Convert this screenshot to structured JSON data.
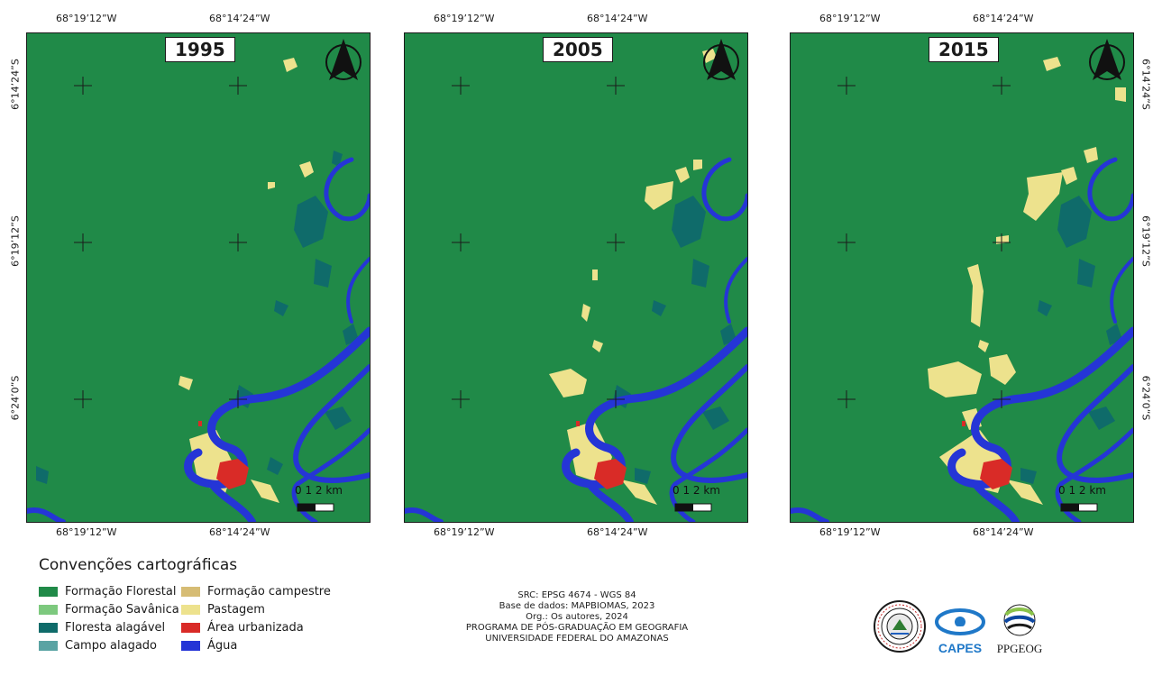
{
  "maps": [
    {
      "year": "1995",
      "lon_labels_top": [
        "68°19’12”W",
        "68°14’24”W"
      ],
      "lon_labels_bottom": [
        "68°19’12”W",
        "68°14’24”W"
      ],
      "lat_labels_left": [
        "6°14’24”S",
        "6°19’12”S",
        "6°24’0”S"
      ],
      "lat_labels_right": [],
      "scale_label": "0   1   2 km"
    },
    {
      "year": "2005",
      "lon_labels_top": [
        "68°19’12”W",
        "68°14’24”W"
      ],
      "lon_labels_bottom": [
        "68°19’12”W",
        "68°14’24”W"
      ],
      "lat_labels_left": [],
      "lat_labels_right": [],
      "scale_label": "0   1   2 km"
    },
    {
      "year": "2015",
      "lon_labels_top": [
        "68°19’12”W",
        "68°14’24”W"
      ],
      "lon_labels_bottom": [
        "68°19’12”W",
        "68°14’24”W"
      ],
      "lat_labels_left": [],
      "lat_labels_right": [
        "6°14’24”S",
        "6°19’12”S",
        "6°24’0”S"
      ],
      "scale_label": "0   1   2 km"
    }
  ],
  "legend": {
    "title": "Convenções cartográficas",
    "items": [
      {
        "label": "Formação Florestal",
        "color": "#208a48"
      },
      {
        "label": "Formação Savânica",
        "color": "#7dc97e"
      },
      {
        "label": "Floresta alagável",
        "color": "#0f6b6a"
      },
      {
        "label": "Campo alagado",
        "color": "#5aa3a3"
      },
      {
        "label": "Formação campestre",
        "color": "#d6bc74"
      },
      {
        "label": "Pastagem",
        "color": "#ede28d"
      },
      {
        "label": "Área urbanizada",
        "color": "#d92b27"
      },
      {
        "label": "Água",
        "color": "#2535d6"
      }
    ]
  },
  "credits": {
    "line1": "SRC: EPSG 4674 - WGS 84",
    "line2": "Base de dados: MAPBIOMAS, 2023",
    "line3": "Org.: Os autores, 2024",
    "line4": "PROGRAMA DE PÓS-GRADUAÇÃO EM GEOGRAFIA",
    "line5": "UNIVERSIDADE FEDERAL DO AMAZONAS"
  },
  "logos": {
    "university": "university-seal",
    "capes": "CAPES",
    "ppgeog": "PPGEOG"
  }
}
